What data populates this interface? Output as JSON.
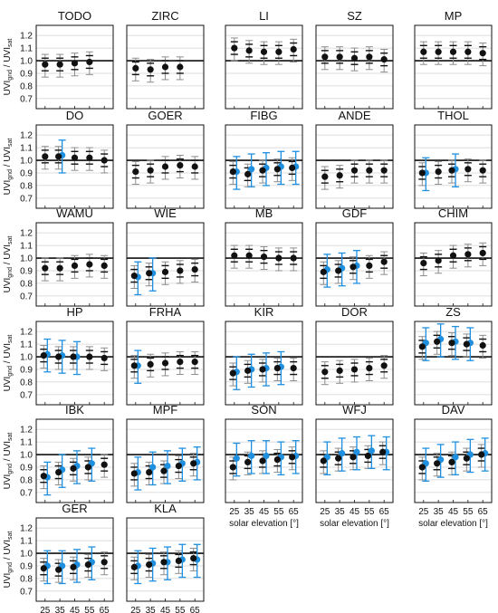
{
  "figure": {
    "ylabel_main": "UVI",
    "ylabel_main_sub": "gnd",
    "ylabel_sep": " / UVI",
    "ylabel_den_sub": "sat",
    "xlabel": "solar elevation [°]"
  },
  "chart_data": {
    "type": "scatter",
    "x": [
      25,
      35,
      45,
      55,
      65
    ],
    "x_ticks": [
      "25",
      "35",
      "45",
      "55",
      "65"
    ],
    "y_ticks": [
      "0.7",
      "0.8",
      "0.9",
      "1.0",
      "1.1",
      "1.2"
    ],
    "ylim": [
      0.62,
      1.28
    ],
    "reference_line": 1.0,
    "grid": "horizontal",
    "colors": {
      "black": "#111111",
      "gray": "#8c8c8c",
      "blue": "#1f8fe0"
    },
    "panels": [
      {
        "name": "TODO",
        "black": [
          0.97,
          0.97,
          0.98,
          0.99
        ],
        "blue": null
      },
      {
        "name": "ZIRC",
        "black": [
          0.94,
          0.93,
          0.95,
          0.95
        ],
        "blue": null
      },
      {
        "name": "LI",
        "black": [
          1.1,
          1.08,
          1.07,
          1.07,
          1.09
        ],
        "blue": null
      },
      {
        "name": "SZ",
        "black": [
          1.03,
          1.03,
          1.02,
          1.03,
          1.01
        ],
        "blue": null
      },
      {
        "name": "MP",
        "black": [
          1.07,
          1.07,
          1.07,
          1.07,
          1.06
        ],
        "blue": null
      },
      {
        "name": "DO",
        "black": [
          1.03,
          1.03,
          1.02,
          1.02,
          1.0
        ],
        "blue": [
          null,
          1.04,
          null,
          null,
          null
        ]
      },
      {
        "name": "GOER",
        "black": [
          0.91,
          0.92,
          0.95,
          0.96,
          0.95
        ],
        "blue": null
      },
      {
        "name": "FIBG",
        "black": [
          0.91,
          0.89,
          0.92,
          0.93,
          0.94
        ],
        "blue": [
          0.91,
          0.93,
          0.94,
          0.95,
          0.95
        ]
      },
      {
        "name": "ANDE",
        "black": [
          0.87,
          0.88,
          0.92,
          0.92,
          0.92
        ],
        "blue": null
      },
      {
        "name": "THOL",
        "black": [
          0.9,
          0.91,
          0.92,
          0.93,
          0.92
        ],
        "blue": [
          0.9,
          null,
          0.93,
          null,
          null
        ]
      },
      {
        "name": "WAMU",
        "black": [
          0.92,
          0.92,
          0.94,
          0.95,
          0.94
        ],
        "blue": null
      },
      {
        "name": "WIE",
        "black": [
          0.86,
          0.88,
          0.89,
          0.9,
          0.91
        ],
        "blue": [
          0.85,
          0.88,
          null,
          null,
          null
        ]
      },
      {
        "name": "MB",
        "black": [
          1.02,
          1.02,
          1.01,
          1.0,
          1.0
        ],
        "blue": null
      },
      {
        "name": "GDF",
        "black": [
          0.89,
          0.9,
          0.93,
          0.94,
          0.97
        ],
        "blue": [
          0.91,
          0.92,
          0.94,
          null,
          null
        ]
      },
      {
        "name": "CHIM",
        "black": [
          0.96,
          0.98,
          1.02,
          1.03,
          1.04
        ],
        "blue": null
      },
      {
        "name": "HP",
        "black": [
          1.01,
          1.0,
          1.0,
          1.0,
          0.99
        ],
        "blue": [
          1.02,
          1.01,
          1.0,
          null,
          null
        ]
      },
      {
        "name": "FRHA",
        "black": [
          0.93,
          0.94,
          0.95,
          0.96,
          0.96
        ],
        "blue": [
          0.93,
          null,
          null,
          null,
          null
        ]
      },
      {
        "name": "KIR",
        "black": [
          0.87,
          0.89,
          0.9,
          0.91,
          0.91
        ],
        "blue": [
          0.88,
          0.9,
          0.91,
          0.92,
          null
        ]
      },
      {
        "name": "DOR",
        "black": [
          0.88,
          0.89,
          0.9,
          0.91,
          0.93
        ],
        "blue": null
      },
      {
        "name": "ZS",
        "black": [
          1.08,
          1.12,
          1.11,
          1.1,
          1.09
        ],
        "blue": [
          1.11,
          1.14,
          1.12,
          1.11,
          null
        ]
      },
      {
        "name": "IBK",
        "black": [
          0.83,
          0.86,
          0.89,
          0.9,
          0.92
        ],
        "blue": [
          0.82,
          0.88,
          0.91,
          0.93,
          null
        ]
      },
      {
        "name": "MPF",
        "black": [
          0.85,
          0.86,
          0.87,
          0.91,
          0.93
        ],
        "blue": [
          0.86,
          0.9,
          0.91,
          0.93,
          0.94
        ]
      },
      {
        "name": "SON",
        "black": [
          0.9,
          0.94,
          0.95,
          0.96,
          0.98
        ],
        "blue": [
          0.97,
          0.99,
          0.99,
          0.98,
          0.99
        ]
      },
      {
        "name": "WFJ",
        "black": [
          0.95,
          0.97,
          0.98,
          0.99,
          1.02
        ],
        "blue": [
          0.98,
          1.01,
          1.02,
          1.03,
          1.02
        ]
      },
      {
        "name": "DAV",
        "black": [
          0.9,
          0.93,
          0.94,
          0.97,
          1.0
        ],
        "blue": [
          0.93,
          0.96,
          0.98,
          1.0,
          1.01
        ]
      },
      {
        "name": "GER",
        "black": [
          0.88,
          0.87,
          0.89,
          0.91,
          0.93
        ],
        "blue": [
          0.9,
          0.9,
          0.91,
          0.93,
          null
        ]
      },
      {
        "name": "KLA",
        "black": [
          0.89,
          0.91,
          0.93,
          0.94,
          0.96
        ],
        "blue": [
          0.9,
          0.92,
          0.93,
          0.95,
          0.95
        ]
      }
    ]
  }
}
